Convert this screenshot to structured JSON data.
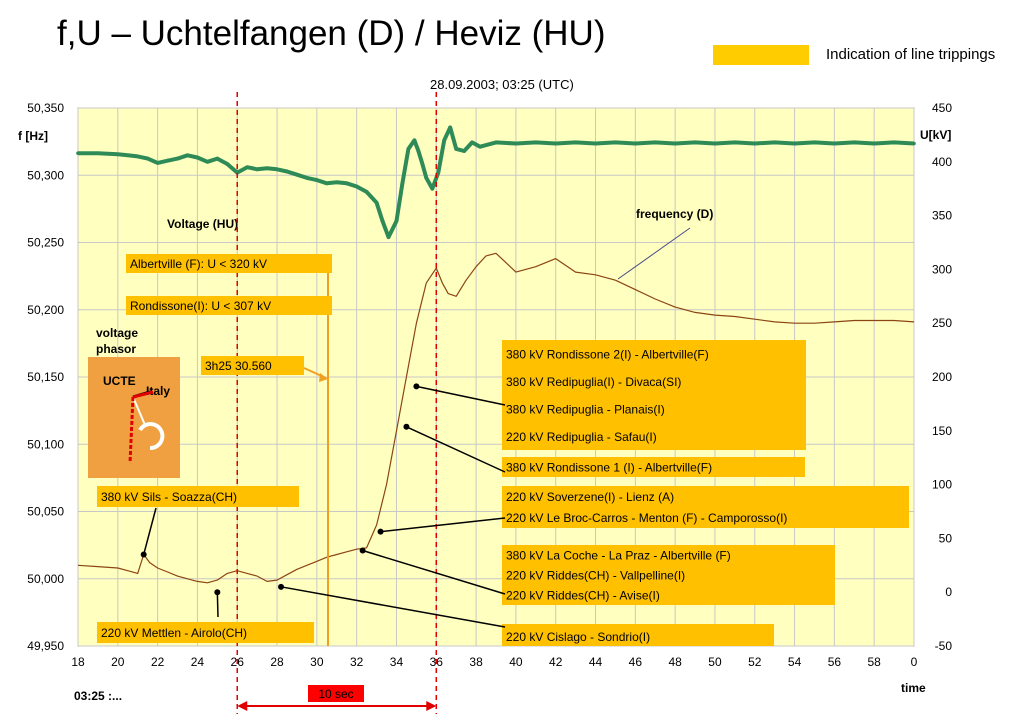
{
  "title": "f,U – Uchtelfangen (D) / Heviz (HU)",
  "subtitle": "28.09.2003; 03:25 (UTC)",
  "legend": {
    "label": "Indication of line trippings",
    "color": "#ffcc00"
  },
  "colors": {
    "plot_bg": "#ffffc0",
    "voltage": "#2e8b57",
    "frequency": "#8b4513",
    "trip_box": "#ffc000",
    "marker_box": "#ff0000"
  },
  "chart_data": {
    "type": "line",
    "title": "f,U – Uchtelfangen (D) / Heviz (HU)",
    "subtitle": "28.09.2003; 03:25 (UTC)",
    "xlabel": "time",
    "ylabel_left": "f [Hz]",
    "ylabel_right": "U[kV]",
    "x_ticks": [
      "18",
      "20",
      "22",
      "24",
      "26",
      "28",
      "30",
      "32",
      "34",
      "36",
      "38",
      "40",
      "42",
      "44",
      "46",
      "48",
      "50",
      "52",
      "54",
      "56",
      "58",
      "0"
    ],
    "y_left_ticks": [
      "50,350",
      "50,300",
      "50,250",
      "50,200",
      "50,150",
      "50,100",
      "50,050",
      "50,000",
      "49,950"
    ],
    "y_right_ticks": [
      "450",
      "400",
      "350",
      "300",
      "250",
      "200",
      "150",
      "100",
      "50",
      "0",
      "-50"
    ],
    "xlim": [
      18,
      60
    ],
    "ylim_left": [
      49.95,
      50.35
    ],
    "ylim_right": [
      -50,
      450
    ],
    "time_origin_label": "03:25 :...",
    "series": [
      {
        "name": "Voltage (HU)",
        "axis": "right",
        "x": [
          18,
          19,
          20,
          20.5,
          21,
          21.5,
          22,
          22.5,
          23,
          23.5,
          24,
          24.5,
          25,
          25.5,
          26,
          26.5,
          27,
          27.5,
          28,
          28.5,
          29,
          29.5,
          30,
          30.5,
          31,
          31.5,
          32,
          32.5,
          33,
          33.3,
          33.6,
          34,
          34.3,
          34.6,
          34.9,
          35.1,
          35.3,
          35.5,
          35.8,
          36.1,
          36.4,
          36.7,
          37,
          37.4,
          37.8,
          38.2,
          39,
          40,
          41,
          42,
          43,
          44,
          45,
          46,
          47,
          48,
          49,
          50,
          51,
          52,
          53,
          54,
          55,
          56,
          57,
          58,
          59,
          60
        ],
        "values": [
          408,
          408,
          407,
          406,
          405,
          403,
          399,
          401,
          403,
          406,
          404,
          400,
          403,
          398,
          390,
          395,
          393,
          394,
          393,
          391,
          388,
          385,
          383,
          380,
          381,
          380,
          377,
          372,
          362,
          345,
          330,
          345,
          380,
          412,
          420,
          410,
          398,
          385,
          375,
          390,
          420,
          432,
          412,
          410,
          418,
          414,
          418,
          417,
          418,
          417,
          418,
          417,
          418,
          417,
          418,
          417,
          418,
          417,
          418,
          417,
          418,
          417,
          418,
          417,
          418,
          417,
          418,
          417
        ]
      },
      {
        "name": "frequency (D)",
        "axis": "left",
        "x": [
          18,
          19,
          20,
          20.5,
          21,
          21.3,
          21.6,
          22,
          22.5,
          23,
          23.5,
          24,
          24.5,
          25,
          25.5,
          26,
          26.5,
          27,
          27.5,
          28,
          28.5,
          29,
          29.5,
          30,
          30.5,
          31,
          31.5,
          32,
          32.5,
          33,
          33.5,
          34,
          34.5,
          35,
          35.5,
          36,
          36.3,
          36.6,
          37,
          37.5,
          38,
          38.5,
          39,
          39.5,
          40,
          41,
          42,
          43,
          44,
          45,
          46,
          47,
          48,
          49,
          50,
          51,
          52,
          53,
          54,
          55,
          56,
          57,
          58,
          59,
          60
        ],
        "values": [
          50.01,
          50.009,
          50.008,
          50.006,
          50.004,
          50.018,
          50.012,
          50.008,
          50.005,
          50.002,
          50.0,
          49.998,
          49.997,
          49.999,
          50.004,
          50.006,
          50.004,
          50.002,
          49.998,
          49.999,
          50.003,
          50.007,
          50.01,
          50.013,
          50.016,
          50.018,
          50.02,
          50.022,
          50.023,
          50.04,
          50.07,
          50.11,
          50.15,
          50.19,
          50.22,
          50.231,
          50.22,
          50.212,
          50.21,
          50.222,
          50.232,
          50.24,
          50.242,
          50.235,
          50.228,
          50.232,
          50.238,
          50.228,
          50.226,
          50.222,
          50.215,
          50.208,
          50.202,
          50.198,
          50.196,
          50.195,
          50.193,
          50.191,
          50.19,
          50.19,
          50.191,
          50.192,
          50.192,
          50.192,
          50.191
        ]
      }
    ],
    "annotations": [
      {
        "label": "Voltage (HU)"
      },
      {
        "label": "frequency (D)"
      },
      {
        "label": "voltage phasor"
      },
      {
        "label": "UCTE"
      },
      {
        "label": "Italy"
      },
      {
        "label": "Albertville (F): U < 320 kV",
        "x": 31
      },
      {
        "label": "Rondissone(I): U < 307 kV",
        "x": 31
      },
      {
        "label": "3h25 30.560",
        "x": 30.56
      },
      {
        "label": "10 sec",
        "x_start": 26,
        "x_end": 36
      },
      {
        "label": "380 kV Sils - Soazza(CH)",
        "x": 21.3,
        "y": 50.018
      },
      {
        "label": "220 kV Mettlen - Airolo(CH)",
        "x": 25,
        "y": 49.99
      },
      {
        "label": "220 kV Cislago - Sondrio(I)",
        "x": 28.2,
        "y": 49.994
      },
      {
        "label": "380 kV La Coche - La Praz - Albertville (F)\n220 kV Riddes(CH) - Vallpelline(I)\n220 kV Riddes(CH) - Avise(I)",
        "x": 32.3,
        "y": 50.021
      },
      {
        "label": "220 kV Soverzene(I) - Lienz (A)\n220 kV Le Broc-Carros - Menton (F) - Camporosso(I)",
        "x": 33.2,
        "y": 50.035
      },
      {
        "label": "380 kV Rondissone 1 (I) - Albertville(F)",
        "x": 34.5,
        "y": 50.113
      },
      {
        "label": "380 kV Rondissone 2(I) - Albertville(F)\n380 kV Redipuglia(I) - Divaca(SI)\n380 kV Redipuglia - Planais(I)\n220 kV Redipuglia - Safau(I)",
        "x": 35,
        "y": 50.143
      }
    ],
    "grid": true
  }
}
